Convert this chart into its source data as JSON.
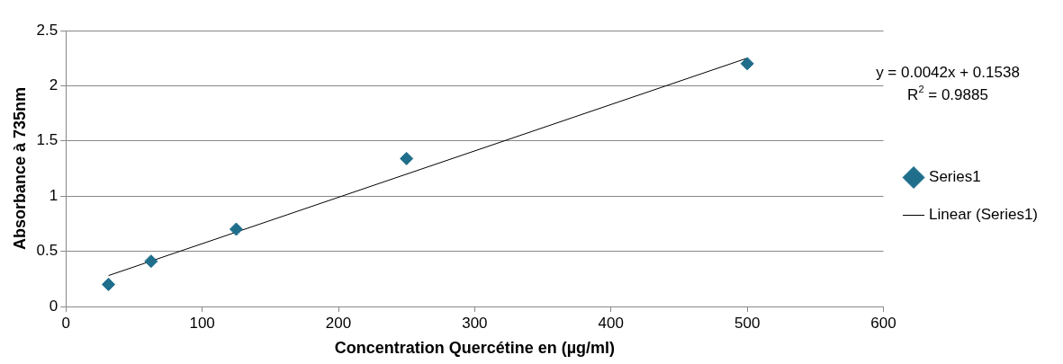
{
  "chart_data": {
    "type": "scatter",
    "xlabel": "Concentration Quercétine en (µg/ml)",
    "ylabel": "Absorbance à 735nm",
    "xlim": [
      0,
      600
    ],
    "xticks": [
      0,
      100,
      200,
      300,
      400,
      500,
      600
    ],
    "ylim": [
      0,
      2.5
    ],
    "yticks": [
      0,
      0.5,
      1,
      1.5,
      2,
      2.5
    ],
    "grid": "y",
    "legend": "right",
    "series": [
      {
        "name": "Series1",
        "marker": "diamond",
        "color": "#1f6e8c",
        "x": [
          31.25,
          62.5,
          125,
          250,
          500
        ],
        "values": [
          0.2,
          0.41,
          0.7,
          1.34,
          2.2
        ]
      },
      {
        "name": "Linear (Series1)",
        "type": "line",
        "color": "#000000",
        "x": [
          31.25,
          500
        ],
        "values": [
          0.28,
          2.25
        ]
      }
    ],
    "annotations": [
      "y = 0.0042x + 0.1538",
      "R$^{2}$ = 0.9885"
    ]
  }
}
